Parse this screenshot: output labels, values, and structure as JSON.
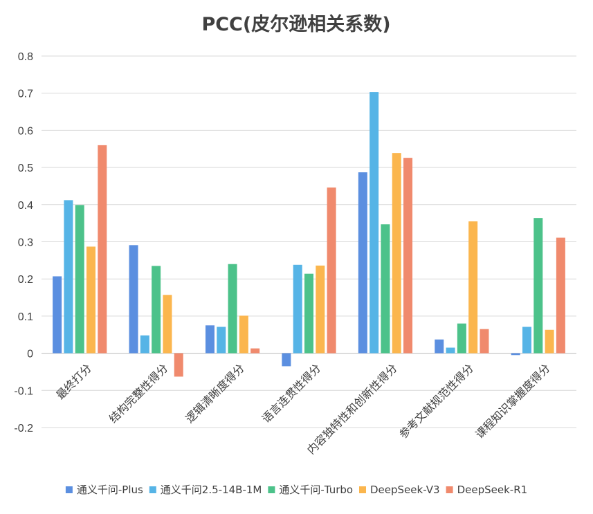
{
  "chart_data": {
    "type": "bar",
    "title": "PCC(皮尔逊相关系数)",
    "xlabel": "",
    "ylabel": "",
    "ylim": [
      -0.2,
      0.8
    ],
    "yticks": [
      0.8,
      0.7,
      0.6,
      0.5,
      0.4,
      0.3,
      0.2,
      0.1,
      0,
      -0.1,
      -0.2
    ],
    "ytick_labels": [
      "0.8",
      "0.7",
      "0.6",
      "0.5",
      "0.4",
      "0.3",
      "0.2",
      "0.1",
      "0",
      "-0.1",
      "-0.2"
    ],
    "grid": true,
    "legend_position": "bottom",
    "categories": [
      "最终打分",
      "结构完整性得分",
      "逻辑清晰度得分",
      "语言连贯性得分",
      "内容独特性和创新性得分",
      "参考文献规范性得分",
      "课程知识掌握度得分"
    ],
    "series": [
      {
        "name": "通义千问-Plus",
        "color": "#5B8FE0",
        "values": [
          0.207,
          0.291,
          0.075,
          -0.035,
          0.487,
          0.037,
          -0.005
        ]
      },
      {
        "name": "通义千问2.5-14B-1M",
        "color": "#56B4E6",
        "values": [
          0.412,
          0.048,
          0.071,
          0.238,
          0.703,
          0.015,
          0.071
        ]
      },
      {
        "name": "通义千问-Turbo",
        "color": "#4CC28A",
        "values": [
          0.399,
          0.235,
          0.24,
          0.214,
          0.347,
          0.08,
          0.364
        ]
      },
      {
        "name": "DeepSeek-V3",
        "color": "#FBB64E",
        "values": [
          0.287,
          0.157,
          0.101,
          0.236,
          0.539,
          0.355,
          0.063
        ]
      },
      {
        "name": "DeepSeek-R1",
        "color": "#F08A6D",
        "values": [
          0.56,
          -0.063,
          0.013,
          0.446,
          0.526,
          0.065,
          0.311
        ]
      }
    ]
  }
}
